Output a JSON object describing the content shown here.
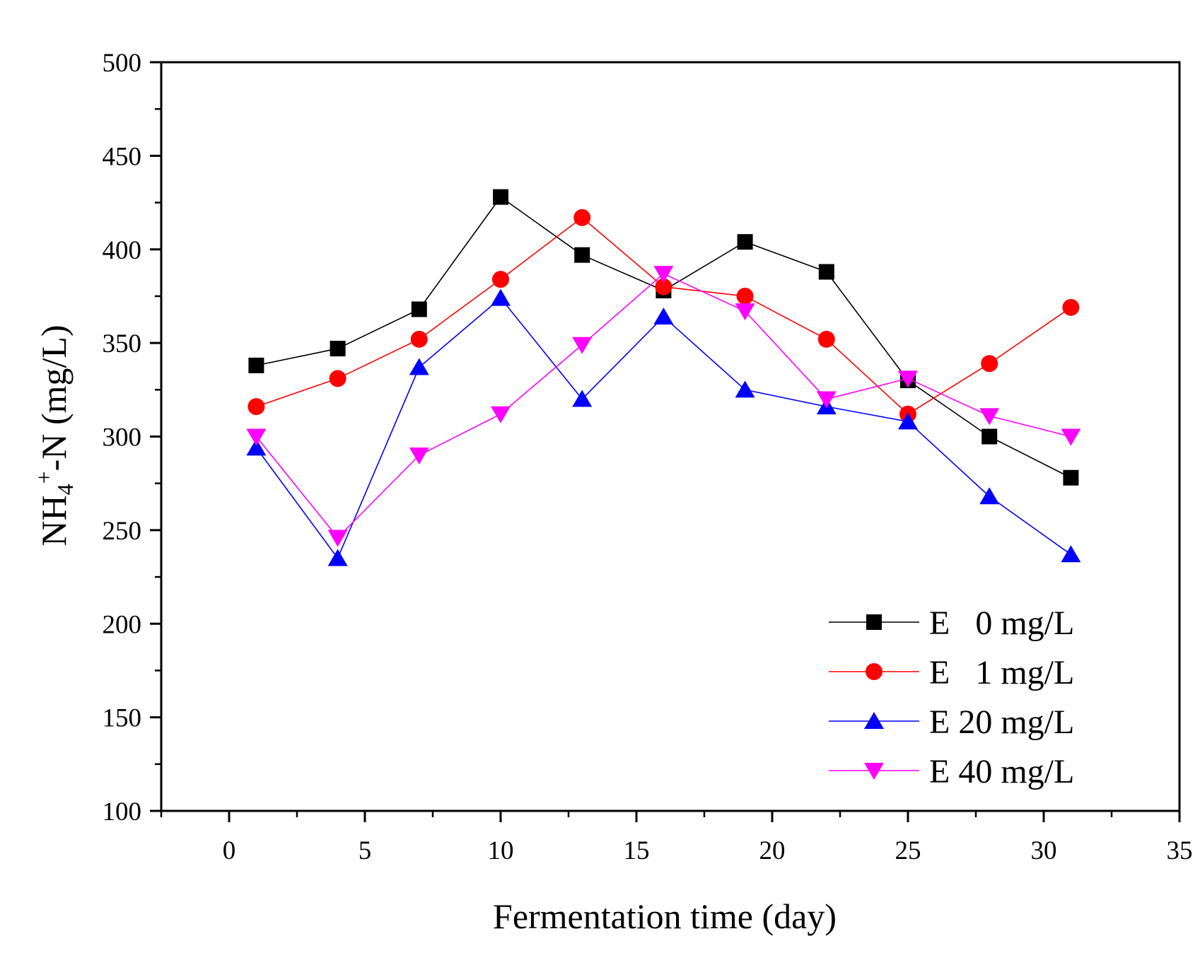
{
  "chart_data": {
    "type": "line",
    "title": "",
    "xlabel": "Fermentation time (day)",
    "ylabel": {
      "base": "NH",
      "subscript": "4",
      "superscript": "+",
      "rest": "-N (mg/L)"
    },
    "xlim": [
      -2.5,
      35
    ],
    "ylim": [
      100,
      500
    ],
    "xticks": [
      0,
      5,
      10,
      15,
      20,
      25,
      30,
      35
    ],
    "yticks": [
      100,
      150,
      200,
      250,
      300,
      350,
      400,
      450,
      500
    ],
    "grid": false,
    "legend_position": "bottom-right",
    "x": [
      1,
      4,
      7,
      10,
      13,
      16,
      19,
      22,
      25,
      28,
      31
    ],
    "series": [
      {
        "name": "E   0 mg/L",
        "color": "#000000",
        "marker": "square",
        "values": [
          338,
          347,
          368,
          428,
          397,
          378,
          404,
          388,
          330,
          300,
          278
        ]
      },
      {
        "name": "E   1 mg/L",
        "color": "#ff0000",
        "marker": "circle",
        "values": [
          316,
          331,
          352,
          384,
          417,
          380,
          375,
          352,
          312,
          339,
          369
        ]
      },
      {
        "name": "E 20 mg/L",
        "color": "#0000ff",
        "marker": "triangle-up",
        "values": [
          294,
          235,
          337,
          374,
          320,
          364,
          325,
          316,
          308,
          268,
          237
        ]
      },
      {
        "name": "E 40 mg/L",
        "color": "#ff00ff",
        "marker": "triangle-down",
        "values": [
          300,
          246,
          290,
          312,
          349,
          387,
          367,
          320,
          331,
          311,
          300
        ]
      }
    ]
  }
}
